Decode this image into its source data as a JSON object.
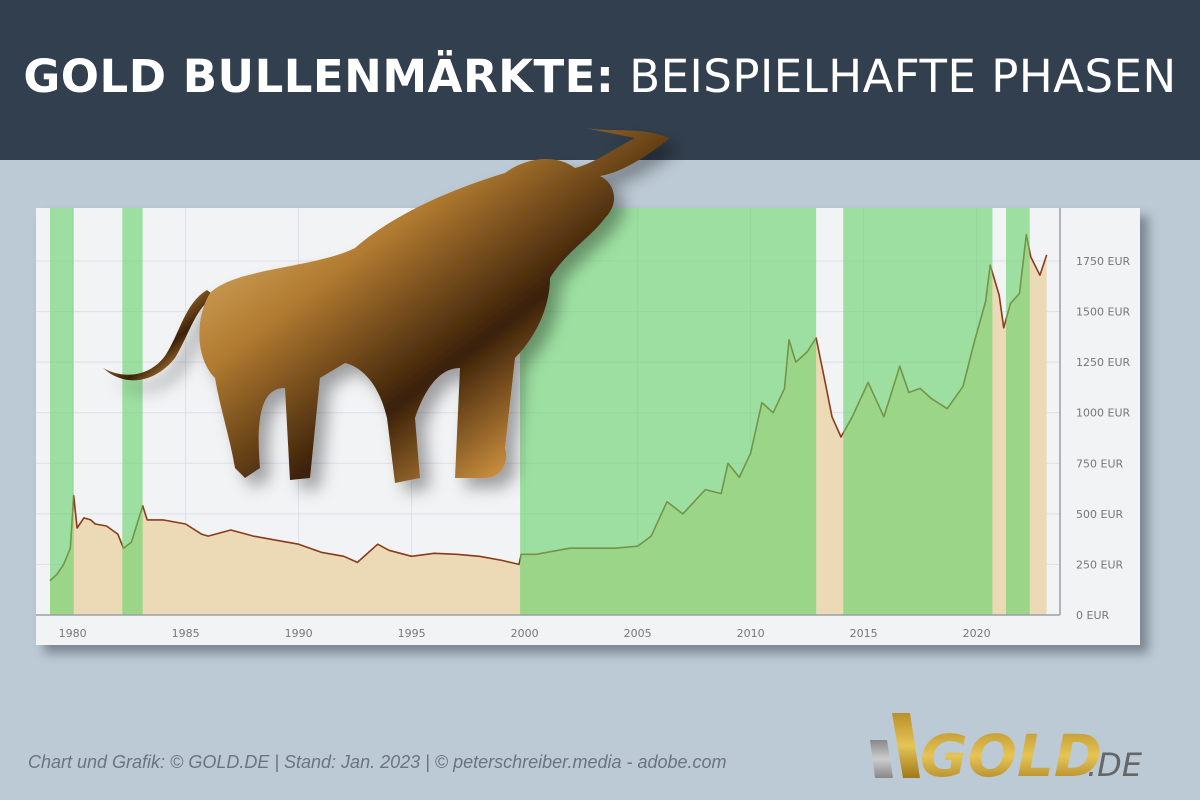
{
  "header": {
    "title_bold": "GOLD BULLENMÄRKTE:",
    "title_light": "BEISPIELHAFTE PHASEN"
  },
  "chart_data": {
    "type": "area",
    "title": "",
    "xlabel": "",
    "ylabel": "",
    "xlim": [
      1978.9,
      2023.8
    ],
    "ylim": [
      0,
      2000
    ],
    "grid": true,
    "x_ticks": [
      "1980",
      "1985",
      "1990",
      "1995",
      "2000",
      "2005",
      "2010",
      "2015",
      "2020"
    ],
    "y_ticks": [
      "0 EUR",
      "250 EUR",
      "500 EUR",
      "750 EUR",
      "1000 EUR",
      "1250 EUR",
      "1500 EUR",
      "1750 EUR"
    ],
    "bull_phases": [
      [
        1979.0,
        1980.05
      ],
      [
        1982.2,
        1983.1
      ],
      [
        1999.8,
        2012.9
      ],
      [
        2014.1,
        2020.7
      ],
      [
        2021.3,
        2022.35
      ]
    ],
    "series": [
      {
        "x": [
          1979.0,
          1979.3,
          1979.6,
          1979.9,
          1980.05,
          1980.2,
          1980.5,
          1980.8,
          1981.0,
          1981.5,
          1982.0,
          1982.25,
          1982.6,
          1983.1,
          1983.3,
          1984.0,
          1985.0,
          1985.7,
          1986.0,
          1987.0,
          1988.0,
          1989.0,
          1990.0,
          1991.0,
          1992.0,
          1992.6,
          1993.5,
          1994.0,
          1995.0,
          1996.0,
          1997.0,
          1998.0,
          1999.0,
          1999.75,
          1999.85,
          2000.5,
          2001.0,
          2002.0,
          2003.0,
          2004.0,
          2005.0,
          2005.6,
          2006.3,
          2007.0,
          2008.0,
          2008.7,
          2009.0,
          2009.5,
          2010.0,
          2010.5,
          2011.0,
          2011.5,
          2011.7,
          2012.0,
          2012.5,
          2012.9,
          2013.3,
          2013.6,
          2014.0,
          2014.5,
          2015.2,
          2015.9,
          2016.6,
          2017.0,
          2017.5,
          2018.0,
          2018.7,
          2019.4,
          2019.9,
          2020.4,
          2020.6,
          2021.0,
          2021.2,
          2021.5,
          2021.9,
          2022.2,
          2022.4,
          2022.8,
          2023.1
        ],
        "y": [
          170,
          200,
          250,
          330,
          590,
          430,
          480,
          470,
          450,
          440,
          400,
          330,
          360,
          540,
          470,
          470,
          450,
          400,
          390,
          420,
          390,
          370,
          350,
          310,
          290,
          260,
          350,
          320,
          290,
          305,
          300,
          290,
          270,
          250,
          300,
          300,
          310,
          330,
          330,
          330,
          340,
          390,
          560,
          500,
          620,
          600,
          750,
          680,
          800,
          1050,
          1000,
          1120,
          1360,
          1250,
          1300,
          1370,
          1150,
          980,
          880,
          980,
          1150,
          980,
          1230,
          1100,
          1120,
          1070,
          1020,
          1130,
          1350,
          1550,
          1730,
          1580,
          1420,
          1540,
          1590,
          1880,
          1770,
          1680,
          1780
        ]
      }
    ]
  },
  "colors": {
    "header_bg": "#323f4e",
    "page_bg": "#bccad5",
    "bull_phase": "#64d269",
    "area_fill": "#ecdab6",
    "line": "#8b3a1a"
  },
  "footer": {
    "credit": "Chart und Grafik: © GOLD.DE  |  Stand: Jan. 2023  |  © peterschreiber.media - adobe.com"
  },
  "logo": {
    "text": "GOLD",
    "suffix": ".DE"
  }
}
